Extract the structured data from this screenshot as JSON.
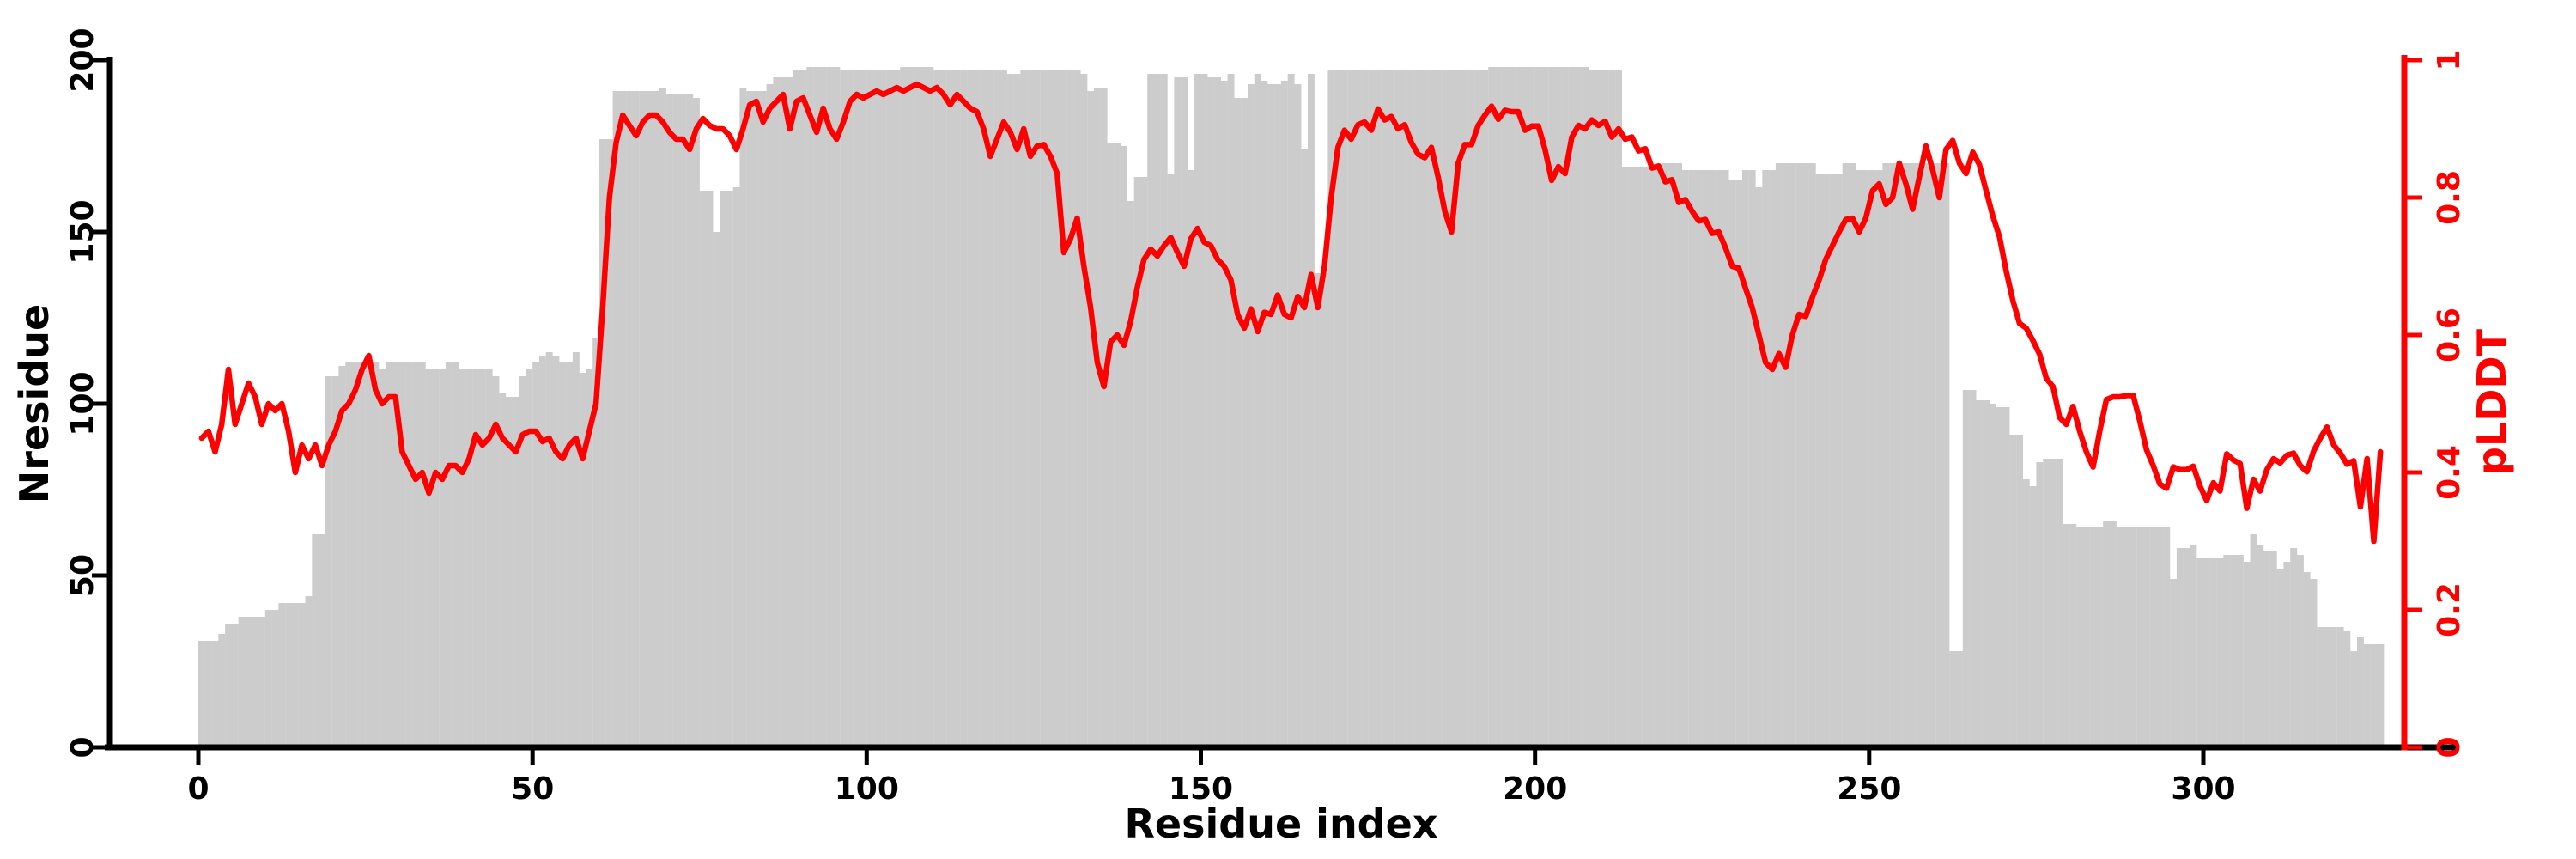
{
  "chart_data": {
    "type": "bar",
    "subtype": "dual-axis bar+line, per-residue profile",
    "title": "",
    "xlabel": "Residue index",
    "ylabel_left": "Nresidue",
    "ylabel_right": "pLDDT",
    "x_start": 0,
    "x_step": 1,
    "x_axis": {
      "label": "Residue index",
      "ticks": [
        0,
        50,
        100,
        150,
        200,
        250,
        300
      ],
      "range": [
        0,
        327
      ]
    },
    "y_left": {
      "label": "Nresidue",
      "ticks": [
        0,
        50,
        100,
        150,
        200
      ],
      "range": [
        0,
        200
      ],
      "color": "#000000"
    },
    "y_right": {
      "label": "pLDDT",
      "tick_values": [
        0,
        0.2,
        0.4,
        0.6,
        0.8,
        1
      ],
      "tick_labels": [
        "0",
        "0.2",
        "0.4",
        "0.6",
        "0.8",
        "1"
      ],
      "range": [
        0,
        1
      ],
      "color": "#ff0000"
    },
    "grid": false,
    "legend": "none",
    "series": [
      {
        "name": "Nresidue",
        "type": "bar",
        "color": "#cccccc",
        "axis": "left",
        "values": [
          31,
          31,
          31,
          33,
          36,
          36,
          38,
          38,
          38,
          38,
          40,
          40,
          42,
          42,
          42,
          42,
          44,
          62,
          62,
          108,
          108,
          111,
          112,
          112,
          112,
          112,
          112,
          110,
          112,
          112,
          112,
          112,
          112,
          112,
          110,
          110,
          110,
          112,
          112,
          110,
          110,
          110,
          110,
          110,
          108,
          103,
          102,
          102,
          108,
          110,
          112,
          114,
          115,
          114,
          112,
          112,
          115,
          109,
          110,
          119,
          177,
          177,
          191,
          191,
          191,
          191,
          191,
          191,
          191,
          192,
          190,
          190,
          190,
          190,
          189,
          162,
          162,
          150,
          162,
          162,
          163,
          192,
          191,
          191,
          191,
          193,
          195,
          195,
          195,
          197,
          197,
          198,
          198,
          198,
          198,
          198,
          197,
          197,
          197,
          197,
          197,
          197,
          197,
          197,
          197,
          198,
          198,
          198,
          198,
          198,
          197,
          197,
          197,
          197,
          197,
          197,
          197,
          197,
          197,
          197,
          197,
          196,
          196,
          197,
          197,
          197,
          197,
          197,
          197,
          197,
          197,
          197,
          196,
          191,
          192,
          192,
          176,
          176,
          175,
          159,
          166,
          166,
          196,
          196,
          196,
          167,
          195,
          195,
          168,
          196,
          196,
          195,
          195,
          194,
          196,
          189,
          189,
          193,
          196,
          194,
          193,
          193,
          194,
          196,
          193,
          174,
          196,
          138,
          138,
          197,
          197,
          197,
          197,
          197,
          197,
          197,
          197,
          197,
          197,
          197,
          197,
          197,
          197,
          197,
          197,
          197,
          197,
          197,
          197,
          197,
          197,
          197,
          197,
          198,
          198,
          198,
          198,
          198,
          198,
          198,
          198,
          198,
          198,
          198,
          198,
          198,
          198,
          198,
          197,
          197,
          197,
          197,
          197,
          169,
          169,
          169,
          169,
          169,
          169,
          170,
          170,
          170,
          168,
          168,
          168,
          168,
          168,
          168,
          168,
          165,
          165,
          168,
          168,
          163,
          168,
          168,
          170,
          170,
          170,
          170,
          170,
          170,
          167,
          167,
          167,
          167,
          170,
          170,
          168,
          168,
          168,
          168,
          170,
          170,
          170,
          170,
          170,
          170,
          170,
          170,
          170,
          170,
          28,
          28,
          104,
          104,
          101,
          101,
          100,
          99,
          99,
          91,
          91,
          78,
          76,
          83,
          84,
          84,
          84,
          65,
          65,
          64,
          64,
          64,
          64,
          66,
          66,
          64,
          64,
          64,
          64,
          64,
          64,
          64,
          64,
          49,
          58,
          58,
          59,
          55,
          55,
          55,
          55,
          56,
          56,
          56,
          54,
          62,
          59,
          57,
          57,
          52,
          54,
          58,
          56,
          51,
          49,
          35,
          35,
          35,
          35,
          34,
          28,
          32,
          30,
          30,
          30
        ]
      },
      {
        "name": "pLDDT",
        "type": "line",
        "color": "#ff0000",
        "axis": "right",
        "values": [
          0.45,
          0.46,
          0.43,
          0.47,
          0.55,
          0.47,
          0.5,
          0.53,
          0.51,
          0.47,
          0.5,
          0.49,
          0.5,
          0.46,
          0.4,
          0.44,
          0.42,
          0.44,
          0.41,
          0.44,
          0.46,
          0.49,
          0.5,
          0.52,
          0.55,
          0.57,
          0.52,
          0.5,
          0.51,
          0.51,
          0.43,
          0.41,
          0.39,
          0.4,
          0.37,
          0.4,
          0.39,
          0.41,
          0.41,
          0.4,
          0.42,
          0.455,
          0.44,
          0.45,
          0.47,
          0.45,
          0.44,
          0.43,
          0.455,
          0.46,
          0.46,
          0.445,
          0.45,
          0.43,
          0.42,
          0.44,
          0.45,
          0.42,
          0.46,
          0.5,
          0.64,
          0.8,
          0.88,
          0.92,
          0.905,
          0.89,
          0.91,
          0.92,
          0.92,
          0.91,
          0.895,
          0.885,
          0.885,
          0.87,
          0.9,
          0.915,
          0.905,
          0.9,
          0.9,
          0.89,
          0.87,
          0.9,
          0.935,
          0.94,
          0.91,
          0.93,
          0.94,
          0.95,
          0.9,
          0.94,
          0.945,
          0.92,
          0.895,
          0.93,
          0.9,
          0.885,
          0.91,
          0.94,
          0.95,
          0.945,
          0.95,
          0.955,
          0.95,
          0.955,
          0.96,
          0.955,
          0.96,
          0.965,
          0.96,
          0.955,
          0.96,
          0.95,
          0.935,
          0.95,
          0.94,
          0.93,
          0.925,
          0.9,
          0.86,
          0.885,
          0.91,
          0.895,
          0.87,
          0.9,
          0.86,
          0.875,
          0.877,
          0.86,
          0.835,
          0.72,
          0.74,
          0.77,
          0.7,
          0.64,
          0.56,
          0.525,
          0.59,
          0.6,
          0.585,
          0.62,
          0.67,
          0.71,
          0.725,
          0.715,
          0.73,
          0.742,
          0.72,
          0.7,
          0.74,
          0.755,
          0.735,
          0.73,
          0.71,
          0.7,
          0.68,
          0.63,
          0.61,
          0.638,
          0.605,
          0.633,
          0.63,
          0.658,
          0.63,
          0.625,
          0.656,
          0.64,
          0.688,
          0.64,
          0.7,
          0.8,
          0.873,
          0.898,
          0.885,
          0.906,
          0.91,
          0.898,
          0.929,
          0.913,
          0.918,
          0.9,
          0.906,
          0.88,
          0.863,
          0.858,
          0.873,
          0.83,
          0.78,
          0.75,
          0.85,
          0.877,
          0.877,
          0.905,
          0.92,
          0.933,
          0.914,
          0.927,
          0.925,
          0.925,
          0.898,
          0.904,
          0.904,
          0.87,
          0.825,
          0.845,
          0.835,
          0.888,
          0.905,
          0.9,
          0.913,
          0.905,
          0.911,
          0.888,
          0.9,
          0.885,
          0.888,
          0.868,
          0.871,
          0.843,
          0.846,
          0.823,
          0.826,
          0.793,
          0.797,
          0.78,
          0.766,
          0.768,
          0.748,
          0.75,
          0.727,
          0.7,
          0.697,
          0.668,
          0.64,
          0.6,
          0.56,
          0.55,
          0.573,
          0.553,
          0.6,
          0.63,
          0.627,
          0.655,
          0.68,
          0.71,
          0.73,
          0.75,
          0.768,
          0.77,
          0.75,
          0.77,
          0.81,
          0.82,
          0.79,
          0.8,
          0.85,
          0.82,
          0.783,
          0.83,
          0.875,
          0.84,
          0.8,
          0.87,
          0.883,
          0.85,
          0.835,
          0.866,
          0.848,
          0.81,
          0.773,
          0.743,
          0.693,
          0.65,
          0.617,
          0.61,
          0.592,
          0.572,
          0.537,
          0.525,
          0.48,
          0.47,
          0.496,
          0.46,
          0.43,
          0.408,
          0.46,
          0.506,
          0.51,
          0.51,
          0.512,
          0.512,
          0.475,
          0.433,
          0.41,
          0.383,
          0.377,
          0.408,
          0.404,
          0.404,
          0.409,
          0.38,
          0.359,
          0.385,
          0.373,
          0.427,
          0.418,
          0.413,
          0.348,
          0.39,
          0.373,
          0.404,
          0.42,
          0.414,
          0.425,
          0.428,
          0.41,
          0.401,
          0.431,
          0.45,
          0.466,
          0.44,
          0.428,
          0.412,
          0.417,
          0.35,
          0.42,
          0.3,
          0.43
        ]
      }
    ]
  },
  "colors": {
    "background": "#ffffff",
    "bar_fill": "#cccccc",
    "line_red": "#ff0000",
    "axis_black": "#000000"
  }
}
